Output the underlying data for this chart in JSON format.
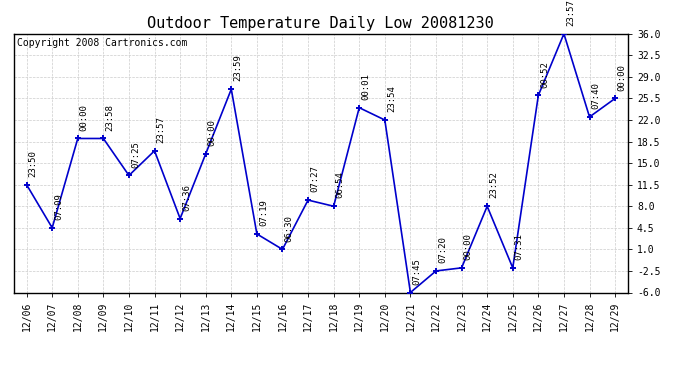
{
  "title": "Outdoor Temperature Daily Low 20081230",
  "copyright": "Copyright 2008 Cartronics.com",
  "x_labels": [
    "12/06",
    "12/07",
    "12/08",
    "12/09",
    "12/10",
    "12/11",
    "12/12",
    "12/13",
    "12/14",
    "12/15",
    "12/16",
    "12/17",
    "12/18",
    "12/19",
    "12/20",
    "12/21",
    "12/22",
    "12/23",
    "12/24",
    "12/25",
    "12/26",
    "12/27",
    "12/28",
    "12/29"
  ],
  "y_values": [
    11.5,
    4.5,
    19.0,
    19.0,
    13.0,
    17.0,
    6.0,
    16.5,
    27.0,
    3.5,
    1.0,
    9.0,
    8.0,
    24.0,
    22.0,
    -6.0,
    -2.5,
    -2.0,
    8.0,
    -2.0,
    26.0,
    36.0,
    22.5,
    25.5
  ],
  "point_labels": [
    "23:50",
    "07:09",
    "00:00",
    "23:58",
    "07:25",
    "23:57",
    "07:36",
    "00:00",
    "23:59",
    "07:19",
    "06:30",
    "07:27",
    "06:54",
    "00:01",
    "23:54",
    "07:45",
    "07:20",
    "00:00",
    "23:52",
    "07:31",
    "00:52",
    "23:57",
    "07:40",
    "00:00"
  ],
  "ylim": [
    -6.0,
    36.0
  ],
  "yticks": [
    -6.0,
    -2.5,
    1.0,
    4.5,
    8.0,
    11.5,
    15.0,
    18.5,
    22.0,
    25.5,
    29.0,
    32.5,
    36.0
  ],
  "line_color": "#0000cc",
  "marker_color": "#0000cc",
  "bg_color": "#ffffff",
  "grid_color": "#cccccc",
  "title_fontsize": 11,
  "label_fontsize": 6.5,
  "copyright_fontsize": 7,
  "tick_fontsize": 7,
  "figwidth": 6.9,
  "figheight": 3.75,
  "dpi": 100
}
